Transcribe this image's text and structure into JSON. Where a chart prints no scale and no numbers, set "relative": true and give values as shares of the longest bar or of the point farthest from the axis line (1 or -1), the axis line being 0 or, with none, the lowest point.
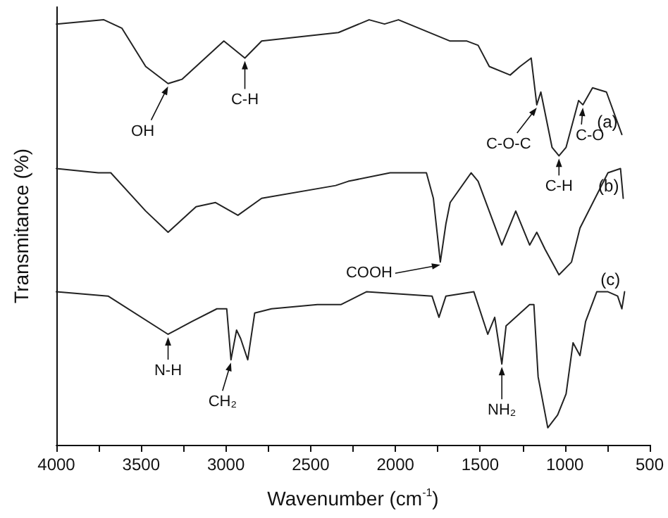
{
  "chart_data": {
    "type": "line",
    "relative": true,
    "xlabel": "Wavenumber (cm$^{-1}$)",
    "ylabel": "Transmitance (%)",
    "xlim": [
      4000,
      500
    ],
    "xticks": [
      4000,
      3500,
      3000,
      2500,
      2000,
      1500,
      1000,
      500
    ],
    "tick_labels": "x",
    "grid": false,
    "legend": false,
    "marker": "none",
    "line_style": "solid",
    "series": [
      {
        "name": "(a)",
        "color": "#222222",
        "x": [
          4000,
          3720,
          3613,
          3473,
          3341,
          3259,
          3012,
          2888,
          2789,
          2336,
          2155,
          2064,
          1982,
          1677,
          1578,
          1512,
          1446,
          1323,
          1265,
          1199,
          1166,
          1142,
          1076,
          1035,
          993,
          919,
          894,
          837,
          755,
          664
        ],
        "values": [
          0.99,
          1.0,
          0.98,
          0.89,
          0.85,
          0.86,
          0.95,
          0.91,
          0.95,
          0.97,
          1.0,
          0.99,
          1.0,
          0.95,
          0.95,
          0.94,
          0.89,
          0.87,
          0.89,
          0.91,
          0.8,
          0.83,
          0.7,
          0.68,
          0.7,
          0.81,
          0.8,
          0.84,
          0.83,
          0.73
        ]
      },
      {
        "name": "(b)",
        "color": "#222222",
        "x": [
          4000,
          3753,
          3679,
          3473,
          3341,
          3176,
          3061,
          2929,
          2789,
          2353,
          2278,
          2031,
          1817,
          1776,
          1735,
          1702,
          1677,
          1553,
          1512,
          1372,
          1290,
          1208,
          1166,
          1117,
          1035,
          961,
          911,
          746,
          672,
          656
        ],
        "values": [
          0.65,
          0.64,
          0.64,
          0.55,
          0.5,
          0.56,
          0.57,
          0.54,
          0.58,
          0.61,
          0.62,
          0.64,
          0.64,
          0.58,
          0.43,
          0.52,
          0.57,
          0.64,
          0.62,
          0.47,
          0.55,
          0.47,
          0.5,
          0.46,
          0.4,
          0.43,
          0.51,
          0.64,
          0.65,
          0.58
        ]
      },
      {
        "name": "(c)",
        "color": "#222222",
        "x": [
          4000,
          3695,
          3341,
          3201,
          3053,
          2995,
          2970,
          2937,
          2913,
          2871,
          2830,
          2731,
          2460,
          2320,
          2270,
          2171,
          1784,
          1743,
          1702,
          1537,
          1455,
          1414,
          1372,
          1347,
          1208,
          1183,
          1158,
          1101,
          1043,
          993,
          952,
          911,
          878,
          812,
          746,
          689,
          664,
          648
        ],
        "values": [
          0.36,
          0.35,
          0.26,
          0.29,
          0.32,
          0.32,
          0.2,
          0.27,
          0.25,
          0.2,
          0.31,
          0.32,
          0.33,
          0.33,
          0.34,
          0.36,
          0.35,
          0.3,
          0.35,
          0.36,
          0.26,
          0.3,
          0.19,
          0.28,
          0.33,
          0.33,
          0.16,
          0.04,
          0.07,
          0.12,
          0.24,
          0.21,
          0.29,
          0.36,
          0.36,
          0.35,
          0.32,
          0.36
        ]
      }
    ],
    "annotations": [
      {
        "text": "OH",
        "x": 3341,
        "y": 0.85
      },
      {
        "text": "C-H",
        "x": 2888,
        "y": 0.91
      },
      {
        "text": "C-O-C",
        "x": 1166,
        "y": 0.8
      },
      {
        "text": "C-H",
        "x": 1035,
        "y": 0.68
      },
      {
        "text": "C-O",
        "x": 894,
        "y": 0.8
      },
      {
        "text": "COOH",
        "x": 1735,
        "y": 0.43
      },
      {
        "text": "N-H",
        "x": 3341,
        "y": 0.26
      },
      {
        "text": "CH₂",
        "x": 2970,
        "y": 0.2
      },
      {
        "text": "NH₂",
        "x": 1372,
        "y": 0.19
      }
    ]
  }
}
